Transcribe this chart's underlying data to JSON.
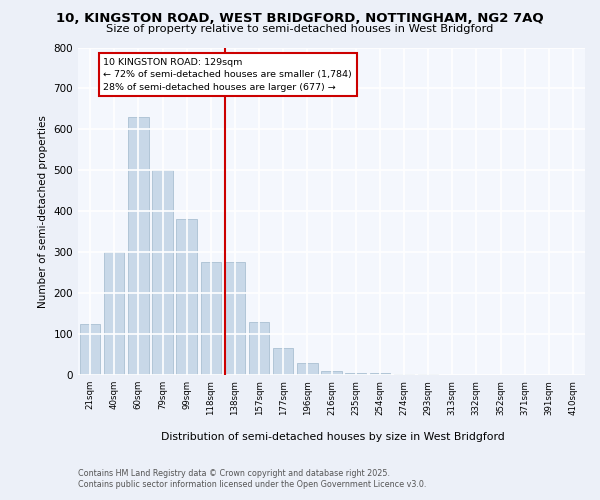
{
  "title_line1": "10, KINGSTON ROAD, WEST BRIDGFORD, NOTTINGHAM, NG2 7AQ",
  "title_line2": "Size of property relative to semi-detached houses in West Bridgford",
  "xlabel": "Distribution of semi-detached houses by size in West Bridgford",
  "ylabel": "Number of semi-detached properties",
  "bins": [
    "21sqm",
    "40sqm",
    "60sqm",
    "79sqm",
    "99sqm",
    "118sqm",
    "138sqm",
    "157sqm",
    "177sqm",
    "196sqm",
    "216sqm",
    "235sqm",
    "254sqm",
    "274sqm",
    "293sqm",
    "313sqm",
    "332sqm",
    "352sqm",
    "371sqm",
    "391sqm",
    "410sqm"
  ],
  "values": [
    125,
    300,
    630,
    500,
    380,
    275,
    275,
    130,
    65,
    30,
    10,
    5,
    5,
    2,
    2,
    1,
    1,
    1,
    1,
    0,
    0
  ],
  "bar_color": "#c8d8e8",
  "bar_edge_color": "#a0b8cc",
  "property_bin_index": 6,
  "vline_color": "#cc0000",
  "annotation_text_line1": "10 KINGSTON ROAD: 129sqm",
  "annotation_text_line2": "← 72% of semi-detached houses are smaller (1,784)",
  "annotation_text_line3": "28% of semi-detached houses are larger (677) →",
  "ylim": [
    0,
    800
  ],
  "yticks": [
    0,
    100,
    200,
    300,
    400,
    500,
    600,
    700,
    800
  ],
  "bg_color": "#ecf0f8",
  "plot_bg_color": "#f4f7fd",
  "grid_color": "#ffffff",
  "footer_line1": "Contains HM Land Registry data © Crown copyright and database right 2025.",
  "footer_line2": "Contains public sector information licensed under the Open Government Licence v3.0."
}
